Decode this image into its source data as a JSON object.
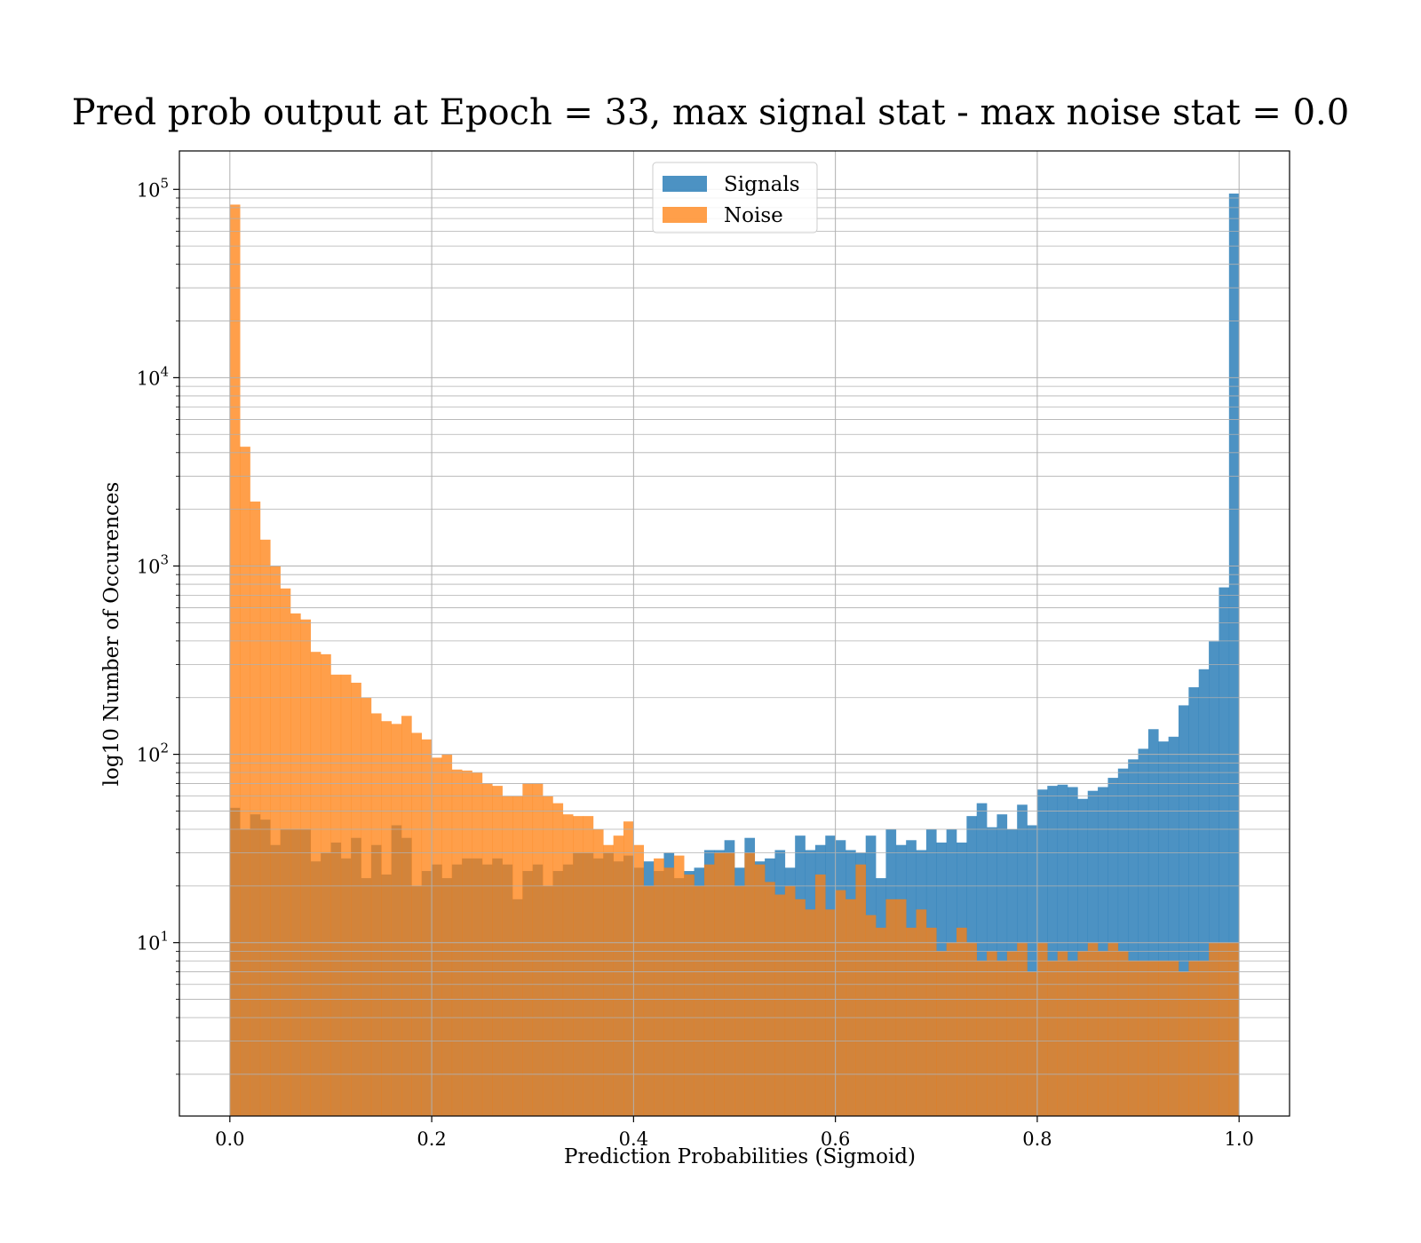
{
  "chart_data": {
    "type": "bar",
    "title": "Pred prob output at Epoch = 33, max signal stat - max noise stat = 0.0",
    "xlabel": "Prediction Probabilities (Sigmoid)",
    "ylabel": "log10 Number of Occurences",
    "yscale": "log",
    "xlim": [
      -0.05,
      1.05
    ],
    "ylim": [
      1.2,
      160000
    ],
    "x_ticks": [
      0.0,
      0.2,
      0.4,
      0.6,
      0.8,
      1.0
    ],
    "x_tick_labels": [
      "0.0",
      "0.2",
      "0.4",
      "0.6",
      "0.8",
      "1.0"
    ],
    "y_ticks": [
      10,
      100,
      1000,
      10000,
      100000
    ],
    "y_tick_bases": [
      "10",
      "10",
      "10",
      "10",
      "10"
    ],
    "y_tick_exponents": [
      "1",
      "2",
      "3",
      "4",
      "5"
    ],
    "grid": true,
    "legend_position": "top-center",
    "bin_width": 0.01,
    "bin_starts": [
      0.0,
      0.01,
      0.02,
      0.03,
      0.04,
      0.05,
      0.06,
      0.07,
      0.08,
      0.09,
      0.1,
      0.11,
      0.12,
      0.13,
      0.14,
      0.15,
      0.16,
      0.17,
      0.18,
      0.19,
      0.2,
      0.21,
      0.22,
      0.23,
      0.24,
      0.25,
      0.26,
      0.27,
      0.28,
      0.29,
      0.3,
      0.31,
      0.32,
      0.33,
      0.34,
      0.35,
      0.36,
      0.37,
      0.38,
      0.39,
      0.4,
      0.41,
      0.42,
      0.43,
      0.44,
      0.45,
      0.46,
      0.47,
      0.48,
      0.49,
      0.5,
      0.51,
      0.52,
      0.53,
      0.54,
      0.55,
      0.56,
      0.57,
      0.58,
      0.59,
      0.6,
      0.61,
      0.62,
      0.63,
      0.64,
      0.65,
      0.66,
      0.67,
      0.68,
      0.69,
      0.7,
      0.71,
      0.72,
      0.73,
      0.74,
      0.75,
      0.76,
      0.77,
      0.78,
      0.79,
      0.8,
      0.81,
      0.82,
      0.83,
      0.84,
      0.85,
      0.86,
      0.87,
      0.88,
      0.89,
      0.9,
      0.91,
      0.92,
      0.93,
      0.94,
      0.95,
      0.96,
      0.97,
      0.98,
      0.99
    ],
    "series": [
      {
        "name": "Signals",
        "color": "#1f77b4",
        "values": [
          52,
          40,
          48,
          45,
          33,
          40,
          40,
          40,
          27,
          30,
          34,
          28,
          36,
          22,
          33,
          23,
          42,
          36,
          20,
          24,
          26,
          22,
          26,
          28,
          28,
          26,
          28,
          26,
          17,
          24,
          26,
          20,
          24,
          26,
          30,
          30,
          28,
          30,
          27,
          29,
          25,
          27,
          24,
          30,
          22,
          24,
          25,
          31,
          31,
          35,
          25,
          36,
          27,
          28,
          31,
          25,
          37,
          31,
          33,
          37,
          35,
          31,
          30,
          37,
          22,
          40,
          33,
          35,
          31,
          40,
          34,
          40,
          34,
          47,
          55,
          41,
          48,
          40,
          54,
          42,
          65,
          68,
          69,
          67,
          58,
          64,
          67,
          75,
          84,
          94,
          107,
          136,
          117,
          124,
          182,
          227,
          283,
          398,
          770,
          95000
        ]
      },
      {
        "name": "Noise",
        "color": "#ff7f0e",
        "values": [
          83000,
          4300,
          2200,
          1380,
          1000,
          760,
          560,
          520,
          350,
          340,
          265,
          265,
          240,
          200,
          165,
          150,
          145,
          160,
          130,
          120,
          96,
          100,
          83,
          82,
          80,
          70,
          68,
          60,
          60,
          70,
          70,
          60,
          55,
          48,
          47,
          47,
          40,
          33,
          37,
          44,
          33,
          20,
          28,
          25,
          29,
          23,
          20,
          26,
          30,
          30,
          20,
          30,
          26,
          21,
          18,
          20,
          17,
          15,
          23,
          15,
          19,
          17,
          26,
          14,
          12,
          17,
          17,
          12,
          15,
          12,
          9,
          10,
          12,
          10,
          8,
          9,
          8,
          9,
          10,
          7,
          10,
          8,
          9,
          8,
          9,
          10,
          9,
          10,
          9,
          8,
          8,
          8,
          8,
          8,
          7,
          8,
          8,
          10,
          10,
          10
        ]
      }
    ]
  }
}
